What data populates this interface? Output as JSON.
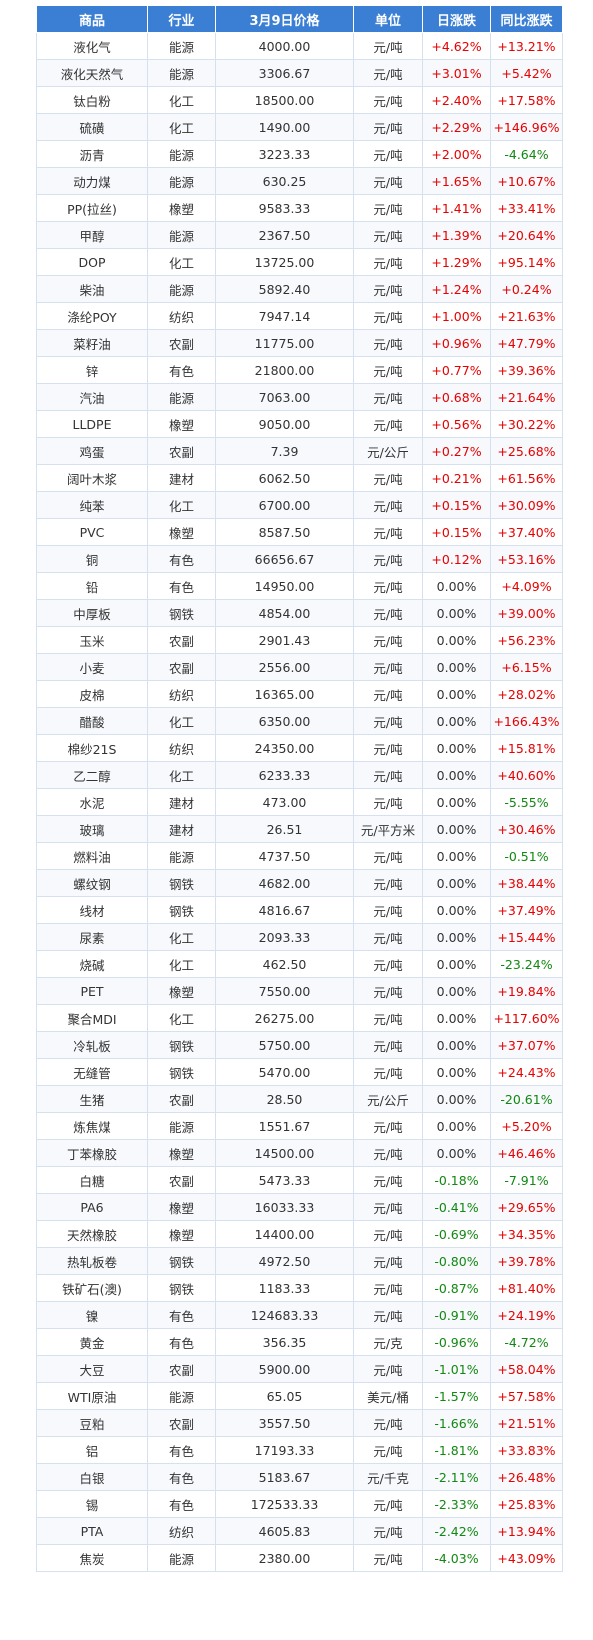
{
  "colors": {
    "header_bg": "#3b7fd4",
    "up": "#e60000",
    "down": "#118811",
    "border": "#d6e1ef"
  },
  "table": {
    "headers": [
      "商品",
      "行业",
      "3月9日价格",
      "单位",
      "日涨跌",
      "同比涨跌"
    ],
    "rows": [
      [
        "液化气",
        "能源",
        "4000.00",
        "元/吨",
        "+4.62%",
        "+13.21%"
      ],
      [
        "液化天然气",
        "能源",
        "3306.67",
        "元/吨",
        "+3.01%",
        "+5.42%"
      ],
      [
        "钛白粉",
        "化工",
        "18500.00",
        "元/吨",
        "+2.40%",
        "+17.58%"
      ],
      [
        "硫磺",
        "化工",
        "1490.00",
        "元/吨",
        "+2.29%",
        "+146.96%"
      ],
      [
        "沥青",
        "能源",
        "3223.33",
        "元/吨",
        "+2.00%",
        "-4.64%"
      ],
      [
        "动力煤",
        "能源",
        "630.25",
        "元/吨",
        "+1.65%",
        "+10.67%"
      ],
      [
        "PP(拉丝)",
        "橡塑",
        "9583.33",
        "元/吨",
        "+1.41%",
        "+33.41%"
      ],
      [
        "甲醇",
        "能源",
        "2367.50",
        "元/吨",
        "+1.39%",
        "+20.64%"
      ],
      [
        "DOP",
        "化工",
        "13725.00",
        "元/吨",
        "+1.29%",
        "+95.14%"
      ],
      [
        "柴油",
        "能源",
        "5892.40",
        "元/吨",
        "+1.24%",
        "+0.24%"
      ],
      [
        "涤纶POY",
        "纺织",
        "7947.14",
        "元/吨",
        "+1.00%",
        "+21.63%"
      ],
      [
        "菜籽油",
        "农副",
        "11775.00",
        "元/吨",
        "+0.96%",
        "+47.79%"
      ],
      [
        "锌",
        "有色",
        "21800.00",
        "元/吨",
        "+0.77%",
        "+39.36%"
      ],
      [
        "汽油",
        "能源",
        "7063.00",
        "元/吨",
        "+0.68%",
        "+21.64%"
      ],
      [
        "LLDPE",
        "橡塑",
        "9050.00",
        "元/吨",
        "+0.56%",
        "+30.22%"
      ],
      [
        "鸡蛋",
        "农副",
        "7.39",
        "元/公斤",
        "+0.27%",
        "+25.68%"
      ],
      [
        "阔叶木浆",
        "建材",
        "6062.50",
        "元/吨",
        "+0.21%",
        "+61.56%"
      ],
      [
        "纯苯",
        "化工",
        "6700.00",
        "元/吨",
        "+0.15%",
        "+30.09%"
      ],
      [
        "PVC",
        "橡塑",
        "8587.50",
        "元/吨",
        "+0.15%",
        "+37.40%"
      ],
      [
        "铜",
        "有色",
        "66656.67",
        "元/吨",
        "+0.12%",
        "+53.16%"
      ],
      [
        "铅",
        "有色",
        "14950.00",
        "元/吨",
        "0.00%",
        "+4.09%"
      ],
      [
        "中厚板",
        "钢铁",
        "4854.00",
        "元/吨",
        "0.00%",
        "+39.00%"
      ],
      [
        "玉米",
        "农副",
        "2901.43",
        "元/吨",
        "0.00%",
        "+56.23%"
      ],
      [
        "小麦",
        "农副",
        "2556.00",
        "元/吨",
        "0.00%",
        "+6.15%"
      ],
      [
        "皮棉",
        "纺织",
        "16365.00",
        "元/吨",
        "0.00%",
        "+28.02%"
      ],
      [
        "醋酸",
        "化工",
        "6350.00",
        "元/吨",
        "0.00%",
        "+166.43%"
      ],
      [
        "棉纱21S",
        "纺织",
        "24350.00",
        "元/吨",
        "0.00%",
        "+15.81%"
      ],
      [
        "乙二醇",
        "化工",
        "6233.33",
        "元/吨",
        "0.00%",
        "+40.60%"
      ],
      [
        "水泥",
        "建材",
        "473.00",
        "元/吨",
        "0.00%",
        "-5.55%"
      ],
      [
        "玻璃",
        "建材",
        "26.51",
        "元/平方米",
        "0.00%",
        "+30.46%"
      ],
      [
        "燃料油",
        "能源",
        "4737.50",
        "元/吨",
        "0.00%",
        "-0.51%"
      ],
      [
        "螺纹钢",
        "钢铁",
        "4682.00",
        "元/吨",
        "0.00%",
        "+38.44%"
      ],
      [
        "线材",
        "钢铁",
        "4816.67",
        "元/吨",
        "0.00%",
        "+37.49%"
      ],
      [
        "尿素",
        "化工",
        "2093.33",
        "元/吨",
        "0.00%",
        "+15.44%"
      ],
      [
        "烧碱",
        "化工",
        "462.50",
        "元/吨",
        "0.00%",
        "-23.24%"
      ],
      [
        "PET",
        "橡塑",
        "7550.00",
        "元/吨",
        "0.00%",
        "+19.84%"
      ],
      [
        "聚合MDI",
        "化工",
        "26275.00",
        "元/吨",
        "0.00%",
        "+117.60%"
      ],
      [
        "冷轧板",
        "钢铁",
        "5750.00",
        "元/吨",
        "0.00%",
        "+37.07%"
      ],
      [
        "无缝管",
        "钢铁",
        "5470.00",
        "元/吨",
        "0.00%",
        "+24.43%"
      ],
      [
        "生猪",
        "农副",
        "28.50",
        "元/公斤",
        "0.00%",
        "-20.61%"
      ],
      [
        "炼焦煤",
        "能源",
        "1551.67",
        "元/吨",
        "0.00%",
        "+5.20%"
      ],
      [
        "丁苯橡胶",
        "橡塑",
        "14500.00",
        "元/吨",
        "0.00%",
        "+46.46%"
      ],
      [
        "白糖",
        "农副",
        "5473.33",
        "元/吨",
        "-0.18%",
        "-7.91%"
      ],
      [
        "PA6",
        "橡塑",
        "16033.33",
        "元/吨",
        "-0.41%",
        "+29.65%"
      ],
      [
        "天然橡胶",
        "橡塑",
        "14400.00",
        "元/吨",
        "-0.69%",
        "+34.35%"
      ],
      [
        "热轧板卷",
        "钢铁",
        "4972.50",
        "元/吨",
        "-0.80%",
        "+39.78%"
      ],
      [
        "铁矿石(澳)",
        "钢铁",
        "1183.33",
        "元/吨",
        "-0.87%",
        "+81.40%"
      ],
      [
        "镍",
        "有色",
        "124683.33",
        "元/吨",
        "-0.91%",
        "+24.19%"
      ],
      [
        "黄金",
        "有色",
        "356.35",
        "元/克",
        "-0.96%",
        "-4.72%"
      ],
      [
        "大豆",
        "农副",
        "5900.00",
        "元/吨",
        "-1.01%",
        "+58.04%"
      ],
      [
        "WTI原油",
        "能源",
        "65.05",
        "美元/桶",
        "-1.57%",
        "+57.58%"
      ],
      [
        "豆粕",
        "农副",
        "3557.50",
        "元/吨",
        "-1.66%",
        "+21.51%"
      ],
      [
        "铝",
        "有色",
        "17193.33",
        "元/吨",
        "-1.81%",
        "+33.83%"
      ],
      [
        "白银",
        "有色",
        "5183.67",
        "元/千克",
        "-2.11%",
        "+26.48%"
      ],
      [
        "锡",
        "有色",
        "172533.33",
        "元/吨",
        "-2.33%",
        "+25.83%"
      ],
      [
        "PTA",
        "纺织",
        "4605.83",
        "元/吨",
        "-2.42%",
        "+13.94%"
      ],
      [
        "焦炭",
        "能源",
        "2380.00",
        "元/吨",
        "-4.03%",
        "+43.09%"
      ]
    ]
  }
}
